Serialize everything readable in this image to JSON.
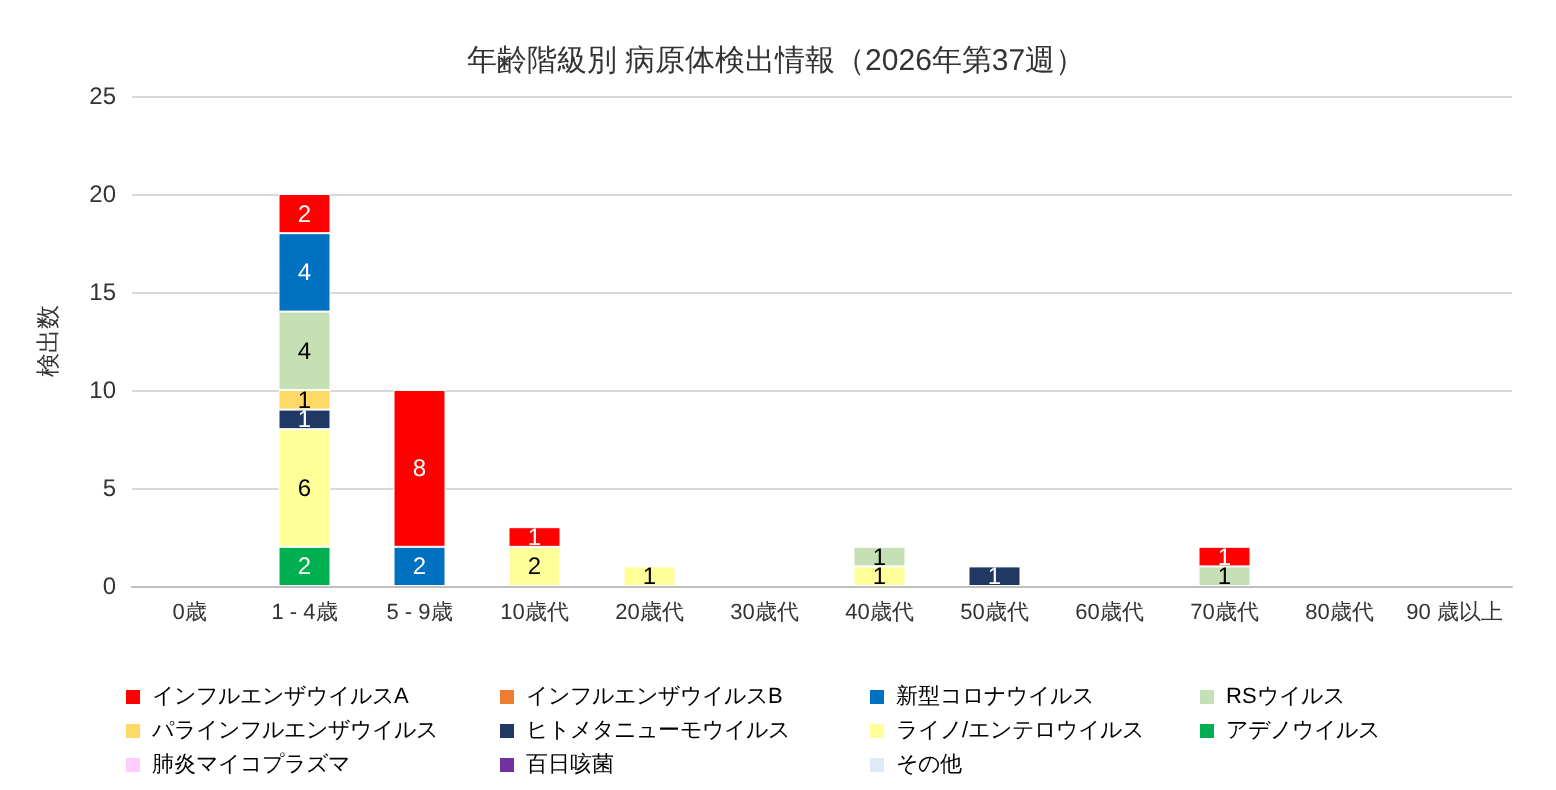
{
  "chart_data": {
    "type": "bar",
    "title": "年齢階級別 病原体検出情報（2026年第37週）",
    "ylabel": "検出数",
    "categories": [
      "0歳",
      "1 - 4歳",
      "5 - 9歳",
      "10歳代",
      "20歳代",
      "30歳代",
      "40歳代",
      "50歳代",
      "60歳代",
      "70歳代",
      "80歳代",
      "90 歳以上"
    ],
    "stacked": true,
    "data_labels": true,
    "grid": "y",
    "legend": "bottom",
    "ylim": [
      0,
      25
    ],
    "yticks": [
      0,
      5,
      10,
      15,
      20,
      25
    ],
    "series": [
      {
        "name": "アデノウイルス",
        "color": "#00b050",
        "values": [
          null,
          2,
          null,
          null,
          null,
          null,
          null,
          null,
          null,
          null,
          null,
          null
        ]
      },
      {
        "name": "ライノ/エンテロウイルス",
        "color": "#ffff99",
        "values": [
          null,
          6,
          null,
          2,
          1,
          null,
          1,
          null,
          null,
          null,
          null,
          null
        ]
      },
      {
        "name": "ヒトメタニューモウイルス",
        "color": "#203864",
        "values": [
          null,
          1,
          null,
          null,
          null,
          null,
          null,
          1,
          null,
          null,
          null,
          null
        ]
      },
      {
        "name": "パラインフルエンザウイルス",
        "color": "#ffd966",
        "values": [
          null,
          1,
          null,
          null,
          null,
          null,
          null,
          null,
          null,
          null,
          null,
          null
        ]
      },
      {
        "name": "RSウイルス",
        "color": "#c5e0b4",
        "values": [
          null,
          4,
          null,
          null,
          null,
          null,
          1,
          null,
          null,
          1,
          null,
          null
        ]
      },
      {
        "name": "新型コロナウイルス",
        "color": "#0070c0",
        "values": [
          null,
          4,
          2,
          null,
          null,
          null,
          null,
          null,
          null,
          null,
          null,
          null
        ]
      },
      {
        "name": "インフルエンザウイルスB",
        "color": "#ed7d31",
        "values": [
          null,
          null,
          null,
          null,
          null,
          null,
          null,
          null,
          null,
          null,
          null,
          null
        ]
      },
      {
        "name": "インフルエンザウイルスA",
        "color": "#ff0000",
        "values": [
          null,
          2,
          8,
          1,
          null,
          null,
          null,
          null,
          null,
          1,
          null,
          null
        ]
      },
      {
        "name": "肺炎マイコプラズマ",
        "color": "#ffccff",
        "values": [
          null,
          null,
          null,
          null,
          null,
          null,
          null,
          null,
          null,
          null,
          null,
          null
        ]
      },
      {
        "name": "百日咳菌",
        "color": "#7030a0",
        "values": [
          null,
          null,
          null,
          null,
          null,
          null,
          null,
          null,
          null,
          null,
          null,
          null
        ]
      },
      {
        "name": "その他",
        "color": "#deebf7",
        "values": [
          null,
          null,
          null,
          null,
          null,
          null,
          null,
          null,
          null,
          null,
          null,
          null
        ]
      }
    ]
  }
}
